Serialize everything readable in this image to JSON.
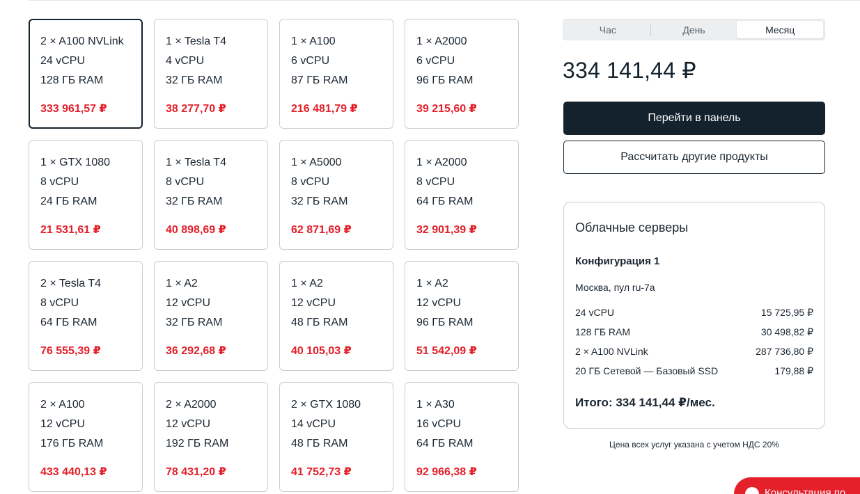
{
  "configs": [
    {
      "gpu": "2 × A100 NVLink",
      "cpu": "24 vCPU",
      "ram": "128 ГБ RAM",
      "price": "333 961,57 ₽",
      "selected": true
    },
    {
      "gpu": "1 × Tesla T4",
      "cpu": "4 vCPU",
      "ram": "32 ГБ RAM",
      "price": "38 277,70 ₽"
    },
    {
      "gpu": "1 × A100",
      "cpu": "6 vCPU",
      "ram": "87 ГБ RAM",
      "price": "216 481,79 ₽"
    },
    {
      "gpu": "1 × A2000",
      "cpu": "6 vCPU",
      "ram": "96 ГБ RAM",
      "price": "39 215,60 ₽"
    },
    {
      "gpu": "1 × GTX 1080",
      "cpu": "8 vCPU",
      "ram": "24 ГБ RAM",
      "price": "21 531,61 ₽"
    },
    {
      "gpu": "1 × Tesla T4",
      "cpu": "8 vCPU",
      "ram": "32 ГБ RAM",
      "price": "40 898,69 ₽"
    },
    {
      "gpu": "1 × A5000",
      "cpu": "8 vCPU",
      "ram": "32 ГБ RAM",
      "price": "62 871,69 ₽"
    },
    {
      "gpu": "1 × A2000",
      "cpu": "8 vCPU",
      "ram": "64 ГБ RAM",
      "price": "32 901,39 ₽"
    },
    {
      "gpu": "2 × Tesla T4",
      "cpu": "8 vCPU",
      "ram": "64 ГБ RAM",
      "price": "76 555,39 ₽"
    },
    {
      "gpu": "1 × A2",
      "cpu": "12 vCPU",
      "ram": "32 ГБ RAM",
      "price": "36 292,68 ₽"
    },
    {
      "gpu": "1 × A2",
      "cpu": "12 vCPU",
      "ram": "48 ГБ RAM",
      "price": "40 105,03 ₽"
    },
    {
      "gpu": "1 × A2",
      "cpu": "12 vCPU",
      "ram": "96 ГБ RAM",
      "price": "51 542,09 ₽"
    },
    {
      "gpu": "2 × A100",
      "cpu": "12 vCPU",
      "ram": "176 ГБ RAM",
      "price": "433 440,13 ₽"
    },
    {
      "gpu": "2 × A2000",
      "cpu": "12 vCPU",
      "ram": "192 ГБ RAM",
      "price": "78 431,20 ₽"
    },
    {
      "gpu": "2 × GTX 1080",
      "cpu": "14 vCPU",
      "ram": "48 ГБ RAM",
      "price": "41 752,73 ₽"
    },
    {
      "gpu": "1 × A30",
      "cpu": "16 vCPU",
      "ram": "64 ГБ RAM",
      "price": "92 966,38 ₽"
    }
  ],
  "period": {
    "tabs": [
      "Час",
      "День",
      "Месяц"
    ],
    "active": "Месяц"
  },
  "total_price": "334 141,44 ₽",
  "buttons": {
    "panel": "Перейти в панель",
    "other": "Рассчитать другие продукты"
  },
  "summary": {
    "title": "Облачные серверы",
    "config_title": "Конфигурация 1",
    "location": "Москва, пул ru-7a",
    "rows": [
      {
        "label": "24 vCPU",
        "value": "15 725,95 ₽"
      },
      {
        "label": "128 ГБ RAM",
        "value": "30 498,82 ₽"
      },
      {
        "label": "2 × A100 NVLink",
        "value": "287 736,80 ₽"
      },
      {
        "label": "20 ГБ Сетевой — Базовый SSD",
        "value": "179,88 ₽"
      }
    ],
    "total": "Итого: 334 141,44 ₽/мес."
  },
  "vat_note": "Цена всех услуг указана с учетом НДС 20%",
  "chat": {
    "label": "Консультация по..."
  },
  "colors": {
    "accent": "#e4202a",
    "dark": "#14222d",
    "border": "#c9ccd1"
  }
}
